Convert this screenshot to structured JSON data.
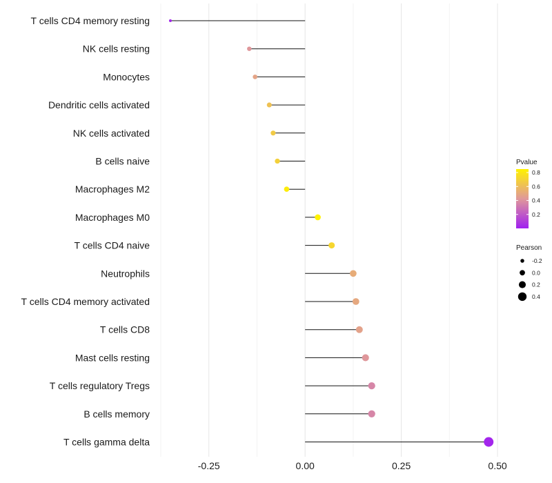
{
  "chart_data": {
    "type": "lollipop",
    "title": "",
    "xlabel": "",
    "ylabel": "",
    "xlim": [
      -0.375,
      0.525
    ],
    "xticks": [
      -0.25,
      0.0,
      0.25,
      0.5
    ],
    "xtick_labels": [
      "-0.25",
      "0.00",
      "0.25",
      "0.50"
    ],
    "grid": true,
    "categories": [
      "T cells CD4 memory resting",
      "NK cells resting",
      "Monocytes",
      "Dendritic cells activated",
      "NK cells activated",
      "B cells naive",
      "Macrophages M2",
      "Macrophages M0",
      "T cells CD4 naive",
      "Neutrophils",
      "T cells CD4 memory activated",
      "T cells CD8",
      "Mast cells resting",
      "T cells regulatory  Tregs",
      "B cells memory",
      "T cells gamma delta"
    ],
    "pearson": [
      -0.35,
      -0.145,
      -0.13,
      -0.093,
      -0.083,
      -0.072,
      -0.048,
      0.033,
      0.069,
      0.125,
      0.132,
      0.141,
      0.157,
      0.173,
      0.173,
      0.477
    ],
    "pvalue": [
      0.02,
      0.42,
      0.48,
      0.62,
      0.66,
      0.69,
      0.82,
      0.86,
      0.72,
      0.52,
      0.5,
      0.47,
      0.42,
      0.36,
      0.36,
      0.02
    ],
    "legend": {
      "color": {
        "title": "Pvalue",
        "range": [
          0.0,
          0.85
        ],
        "ticks": [
          0.2,
          0.4,
          0.6,
          0.8
        ],
        "tick_labels": [
          "0.2",
          "0.4",
          "0.6",
          "0.8"
        ],
        "low_color": "#a020f0",
        "mid_color": "#e0989a",
        "high_color": "#fff200"
      },
      "size": {
        "title": "Pearson",
        "values": [
          -0.2,
          0.0,
          0.2,
          0.4
        ],
        "labels": [
          "-0.2",
          "0.0",
          "0.2",
          "0.4"
        ]
      },
      "placement": "right"
    }
  }
}
